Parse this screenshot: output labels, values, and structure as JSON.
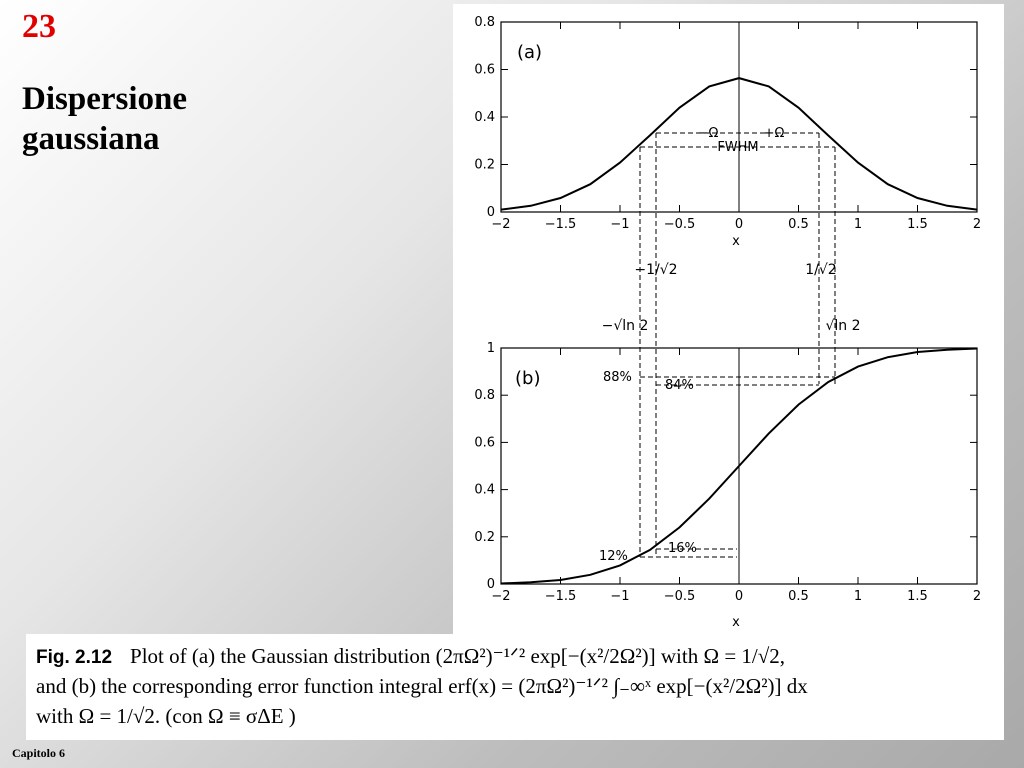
{
  "slide": {
    "number": "23",
    "title": "Dispersione gaussiana",
    "footer": "Capitolo  6"
  },
  "figure": {
    "caption_label": "Fig. 2.12",
    "caption_line1": "Plot of (a) the Gaussian distribution (2πΩ²)⁻¹ᐟ² exp[−(x²/2Ω²)] with Ω = 1/√2,",
    "caption_line2": "and (b) the corresponding error function integral erf(x) = (2πΩ²)⁻¹ᐟ² ∫₋∞ˣ exp[−(x²/2Ω²)] dx",
    "caption_line3": "with Ω = 1/√2.     (con   Ω  ≡  σΔE )",
    "annotations": {
      "omega_minus": "−Ω",
      "omega_plus": "+Ω",
      "fwhm": "FWHM",
      "neg_inv_sqrt2": "−1/√2",
      "pos_inv_sqrt2": "1/√2",
      "neg_sqrt_ln2": "−√ln 2",
      "pos_sqrt_ln2": "√ln 2",
      "pct_88": "88%",
      "pct_84": "84%",
      "pct_12": "12%",
      "pct_16": "16%"
    }
  },
  "chart_data": [
    {
      "type": "line",
      "panel_label": "(a)",
      "xlabel": "x",
      "ylabel": "",
      "xlim": [
        -2,
        2
      ],
      "ylim": [
        0,
        0.8
      ],
      "x_ticks": [
        "−2",
        "−1.5",
        "−1",
        "−0.5",
        "0",
        "0.5",
        "1",
        "1.5",
        "2"
      ],
      "y_ticks": [
        "0",
        "0.2",
        "0.4",
        "0.6",
        "0.8"
      ],
      "series": [
        {
          "x": [
            -2,
            -1.75,
            -1.5,
            -1.25,
            -1,
            -0.75,
            -0.5,
            -0.25,
            0,
            0.25,
            0.5,
            0.75,
            1,
            1.25,
            1.5,
            1.75,
            2
          ],
          "y": [
            0.01,
            0.026,
            0.059,
            0.117,
            0.208,
            0.322,
            0.439,
            0.529,
            0.564,
            0.529,
            0.439,
            0.322,
            0.208,
            0.117,
            0.059,
            0.026,
            0.01
          ]
        }
      ]
    },
    {
      "type": "line",
      "panel_label": "(b)",
      "xlabel": "x",
      "ylabel": "",
      "xlim": [
        -2,
        2
      ],
      "ylim": [
        0,
        1
      ],
      "x_ticks": [
        "−2",
        "−1.5",
        "−1",
        "−0.5",
        "0",
        "0.5",
        "1",
        "1.5",
        "2"
      ],
      "y_ticks": [
        "0",
        "0.2",
        "0.4",
        "0.6",
        "0.8",
        "1"
      ],
      "series": [
        {
          "x": [
            -2,
            -1.75,
            -1.5,
            -1.25,
            -1,
            -0.75,
            -0.5,
            -0.25,
            0,
            0.25,
            0.5,
            0.75,
            1,
            1.25,
            1.5,
            1.75,
            2
          ],
          "y": [
            0.002,
            0.007,
            0.017,
            0.039,
            0.079,
            0.144,
            0.24,
            0.362,
            0.5,
            0.638,
            0.76,
            0.856,
            0.921,
            0.961,
            0.983,
            0.993,
            0.998
          ]
        }
      ]
    }
  ]
}
